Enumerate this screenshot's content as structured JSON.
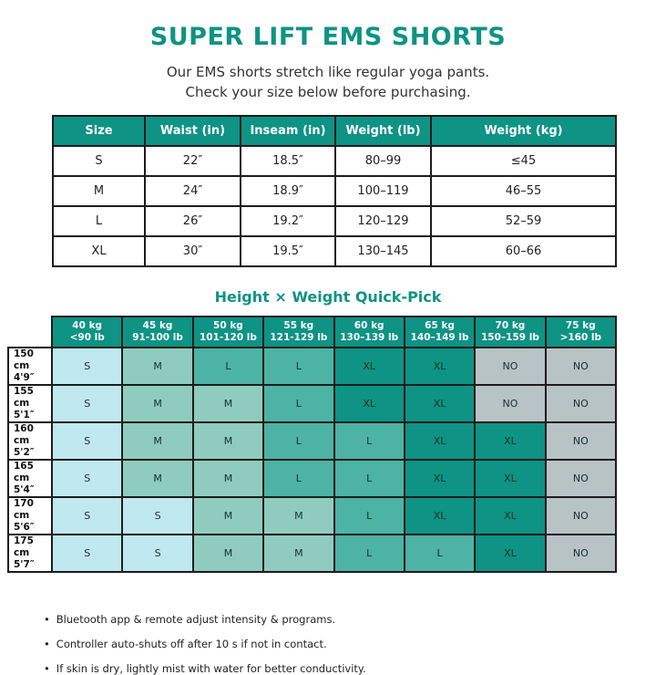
{
  "page": {
    "title": "SUPER LIFT EMS SHORTS",
    "subtitle_line1": "Our EMS shorts stretch like regular yoga pants.",
    "subtitle_line2": "Check your size below before purchasing."
  },
  "size_table": {
    "headers": [
      "Size",
      "Waist (in)",
      "Inseam (in)",
      "Weight (lb)",
      "Weight (kg)"
    ],
    "rows": [
      [
        "S",
        "22″",
        "18.5″",
        "80–99",
        "≤45"
      ],
      [
        "M",
        "24″",
        "18.9″",
        "100–119",
        "46–55"
      ],
      [
        "L",
        "26″",
        "19.2″",
        "120–129",
        "52–59"
      ],
      [
        "XL",
        "30″",
        "19.5″",
        "130–145",
        "60–66"
      ]
    ]
  },
  "quick_pick": {
    "heading": "Height × Weight Quick-Pick",
    "col_headers": [
      [
        "40 kg",
        "<90 lb"
      ],
      [
        "45 kg",
        "91-100 lb"
      ],
      [
        "50 kg",
        "101-120 lb"
      ],
      [
        "55 kg",
        "121-129 lb"
      ],
      [
        "60 kg",
        "130–139 lb"
      ],
      [
        "65 kg",
        "140–149 lb"
      ],
      [
        "70 kg",
        "150–159 lb"
      ],
      [
        "75 kg",
        ">160 lb"
      ]
    ],
    "row_headers": [
      [
        "150 cm",
        "4'9″"
      ],
      [
        "155 cm",
        "5'1″"
      ],
      [
        "160 cm",
        "5'2″"
      ],
      [
        "165 cm",
        "5'4″"
      ],
      [
        "170 cm",
        "5'6″"
      ],
      [
        "175 cm",
        "5'7″"
      ]
    ],
    "cells": [
      [
        "S",
        "M",
        "L",
        "L",
        "XL",
        "XL",
        "NO",
        "NO"
      ],
      [
        "S",
        "M",
        "M",
        "L",
        "XL",
        "XL",
        "NO",
        "NO"
      ],
      [
        "S",
        "M",
        "M",
        "L",
        "L",
        "XL",
        "XL",
        "NO"
      ],
      [
        "S",
        "M",
        "M",
        "L",
        "L",
        "XL",
        "XL",
        "NO"
      ],
      [
        "S",
        "S",
        "M",
        "M",
        "L",
        "XL",
        "XL",
        "NO"
      ],
      [
        "S",
        "S",
        "M",
        "M",
        "L",
        "L",
        "XL",
        "NO"
      ]
    ]
  },
  "notes": {
    "bullet_char": "•",
    "items": [
      "Bluetooth app & remote adjust intensity & programs.",
      "Controller auto-shuts off after 10 s if not in contact.",
      "If skin is dry, lightly mist with water for better conductivity."
    ]
  },
  "colors": {
    "accent_teal": "#0e9384",
    "header_text": "#ffffff",
    "border": "#1c1c1c",
    "body_text": "#222222",
    "size_cells": {
      "S": "#bfe8ef",
      "M": "#8fccbf",
      "L": "#4db3a4",
      "XL": "#0e9384",
      "NO": "#b8c3c6"
    }
  }
}
